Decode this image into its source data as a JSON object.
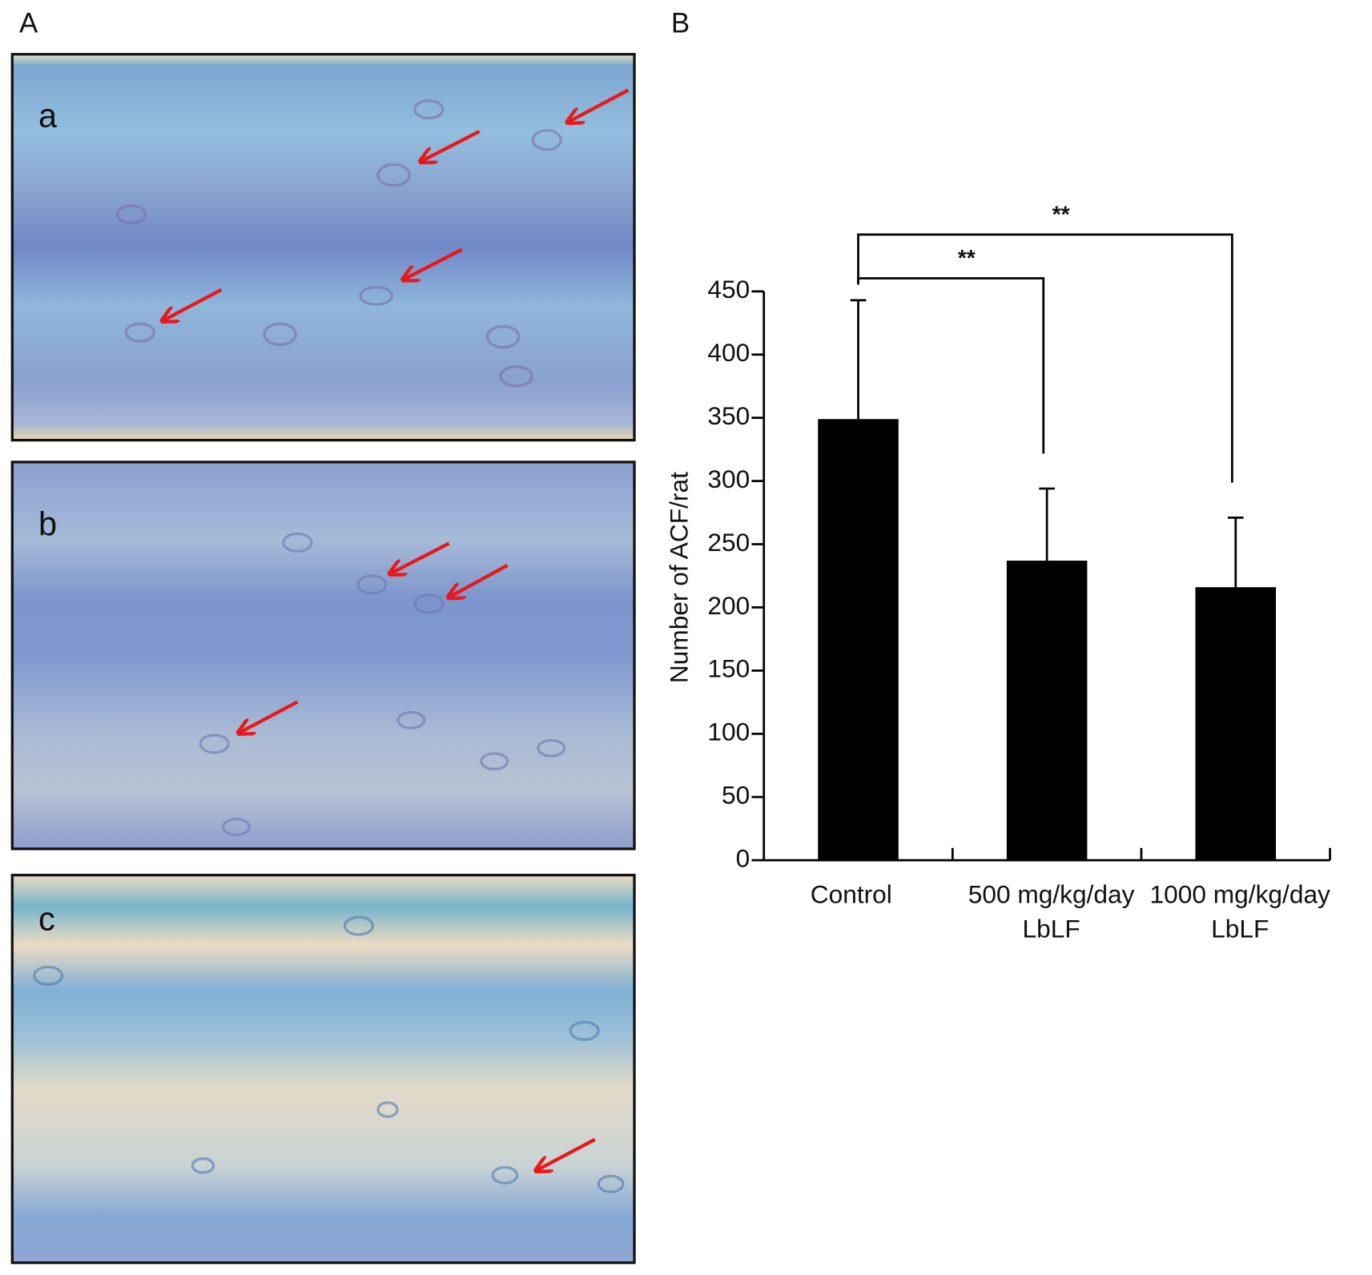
{
  "panel_labels": [
    "A",
    "B"
  ],
  "micrographs": [
    "a",
    "b",
    "c"
  ],
  "chart_data": {
    "type": "bar",
    "y_label": "Number of ACF/rat",
    "categories": [
      "Control",
      "500 mg/kg/day\nLbLF",
      "1000 mg/kg/day\nLbLF"
    ],
    "values": [
      349,
      237,
      216
    ],
    "errors": [
      94,
      57,
      55
    ],
    "color": "#000000",
    "ylim": [
      0,
      450
    ],
    "yticks": [
      0,
      50,
      100,
      150,
      200,
      250,
      300,
      350,
      400,
      450
    ],
    "annotations": [
      "**",
      "**"
    ]
  }
}
